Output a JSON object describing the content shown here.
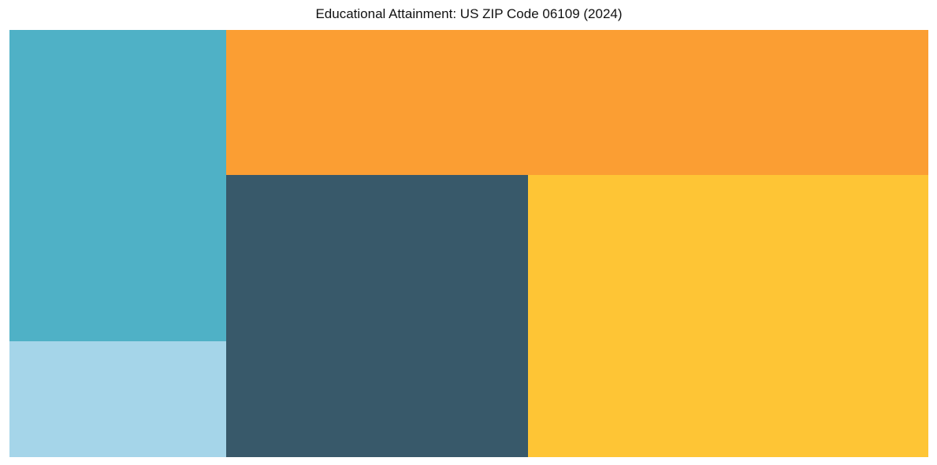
{
  "chart_data": {
    "type": "treemap",
    "title": "Educational Attainment: US ZIP Code 06109 (2024)",
    "labels_visible": false,
    "value_unit": "share of total area, percent (estimated from tile sizes)",
    "segments": [
      {
        "name": "teal-segment",
        "color": "#4FB1C6",
        "share_pct": 17.2,
        "position": "top-left"
      },
      {
        "name": "light-blue-segment",
        "color": "#A5D5E9",
        "share_pct": 6.4,
        "position": "bottom-left"
      },
      {
        "name": "orange-segment",
        "color": "#FB9E33",
        "share_pct": 25.9,
        "position": "top-right"
      },
      {
        "name": "dark-slate-segment",
        "color": "#38596A",
        "share_pct": 21.7,
        "position": "bottom-middle"
      },
      {
        "name": "yellow-segment",
        "color": "#FEC535",
        "share_pct": 28.8,
        "position": "bottom-right"
      }
    ]
  }
}
